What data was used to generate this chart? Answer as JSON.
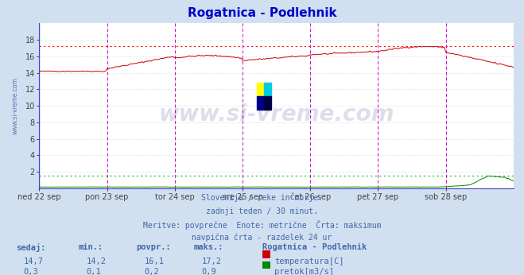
{
  "title": "Rogatnica - Podlehnik",
  "title_color": "#0000cc",
  "bg_color": "#d0e0f0",
  "plot_bg_color": "#ffffff",
  "grid_color": "#cccccc",
  "grid_style": "dotted",
  "x_labels": [
    "ned 22 sep",
    "pon 23 sep",
    "tor 24 sep",
    "sre 25 sep",
    "čet 26 sep",
    "pet 27 sep",
    "sob 28 sep"
  ],
  "ylim": [
    0,
    20
  ],
  "yticks": [
    2,
    4,
    6,
    8,
    10,
    12,
    14,
    16,
    18
  ],
  "temp_color": "#cc0000",
  "flow_color": "#008800",
  "temp_max_line_color": "#ff0000",
  "flow_max_line_color": "#00cc00",
  "left_border_color": "#4444cc",
  "vline_color": "#cc00cc",
  "watermark_color": "#000066",
  "watermark_alpha": 0.13,
  "footer_color": "#4466aa",
  "footer_lines": [
    "Slovenija / reke in morje.",
    "zadnji teden / 30 minut.",
    "Meritve: povprečne  Enote: metrične  Črta: maksimum",
    "navpična črta - razdelek 24 ur"
  ],
  "table_headers": [
    "sedaj:",
    "min.:",
    "povpr.:",
    "maks.:"
  ],
  "table_rows": [
    [
      "14,7",
      "14,2",
      "16,1",
      "17,2"
    ],
    [
      "0,3",
      "0,1",
      "0,2",
      "0,9"
    ]
  ],
  "table_series": [
    "temperatura[C]",
    "pretok[m3/s]"
  ],
  "table_colors": [
    "#cc0000",
    "#008800"
  ],
  "station_name": "Rogatnica - Podlehnik",
  "n_points": 337,
  "temp_max": 17.2,
  "flow_max": 0.9,
  "flow_scale_factor": 20.0,
  "axis_max": 20.0
}
